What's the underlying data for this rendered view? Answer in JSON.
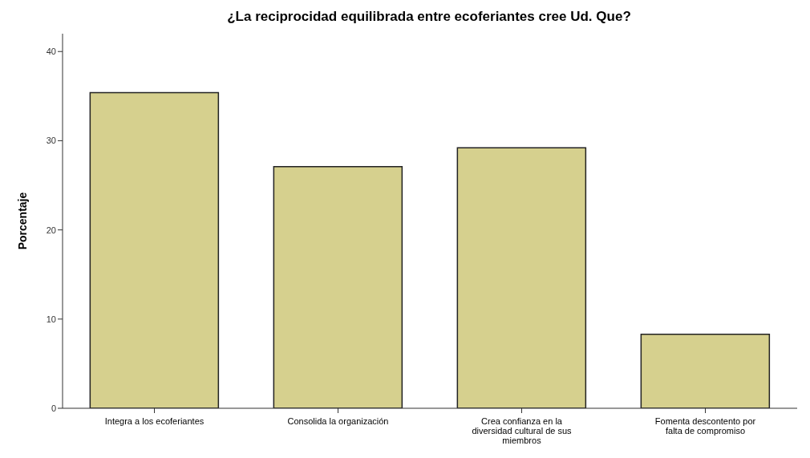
{
  "chart_data": {
    "type": "bar",
    "title": "¿La reciprocidad equilibrada entre ecoferiantes cree Ud. Que?",
    "ylabel": "Porcentaje",
    "categories": [
      "Integra a los ecoferiantes",
      "Consolida la organización",
      "Crea confianza en la diversidad cultural de sus miembros",
      "Fomenta descontento por falta de compromiso"
    ],
    "values": [
      35.4,
      27.1,
      29.2,
      8.3
    ],
    "color": "#d6d08e",
    "ylim": [
      0,
      42
    ],
    "yticks": [
      0,
      10,
      20,
      30,
      40
    ],
    "grid": false
  }
}
